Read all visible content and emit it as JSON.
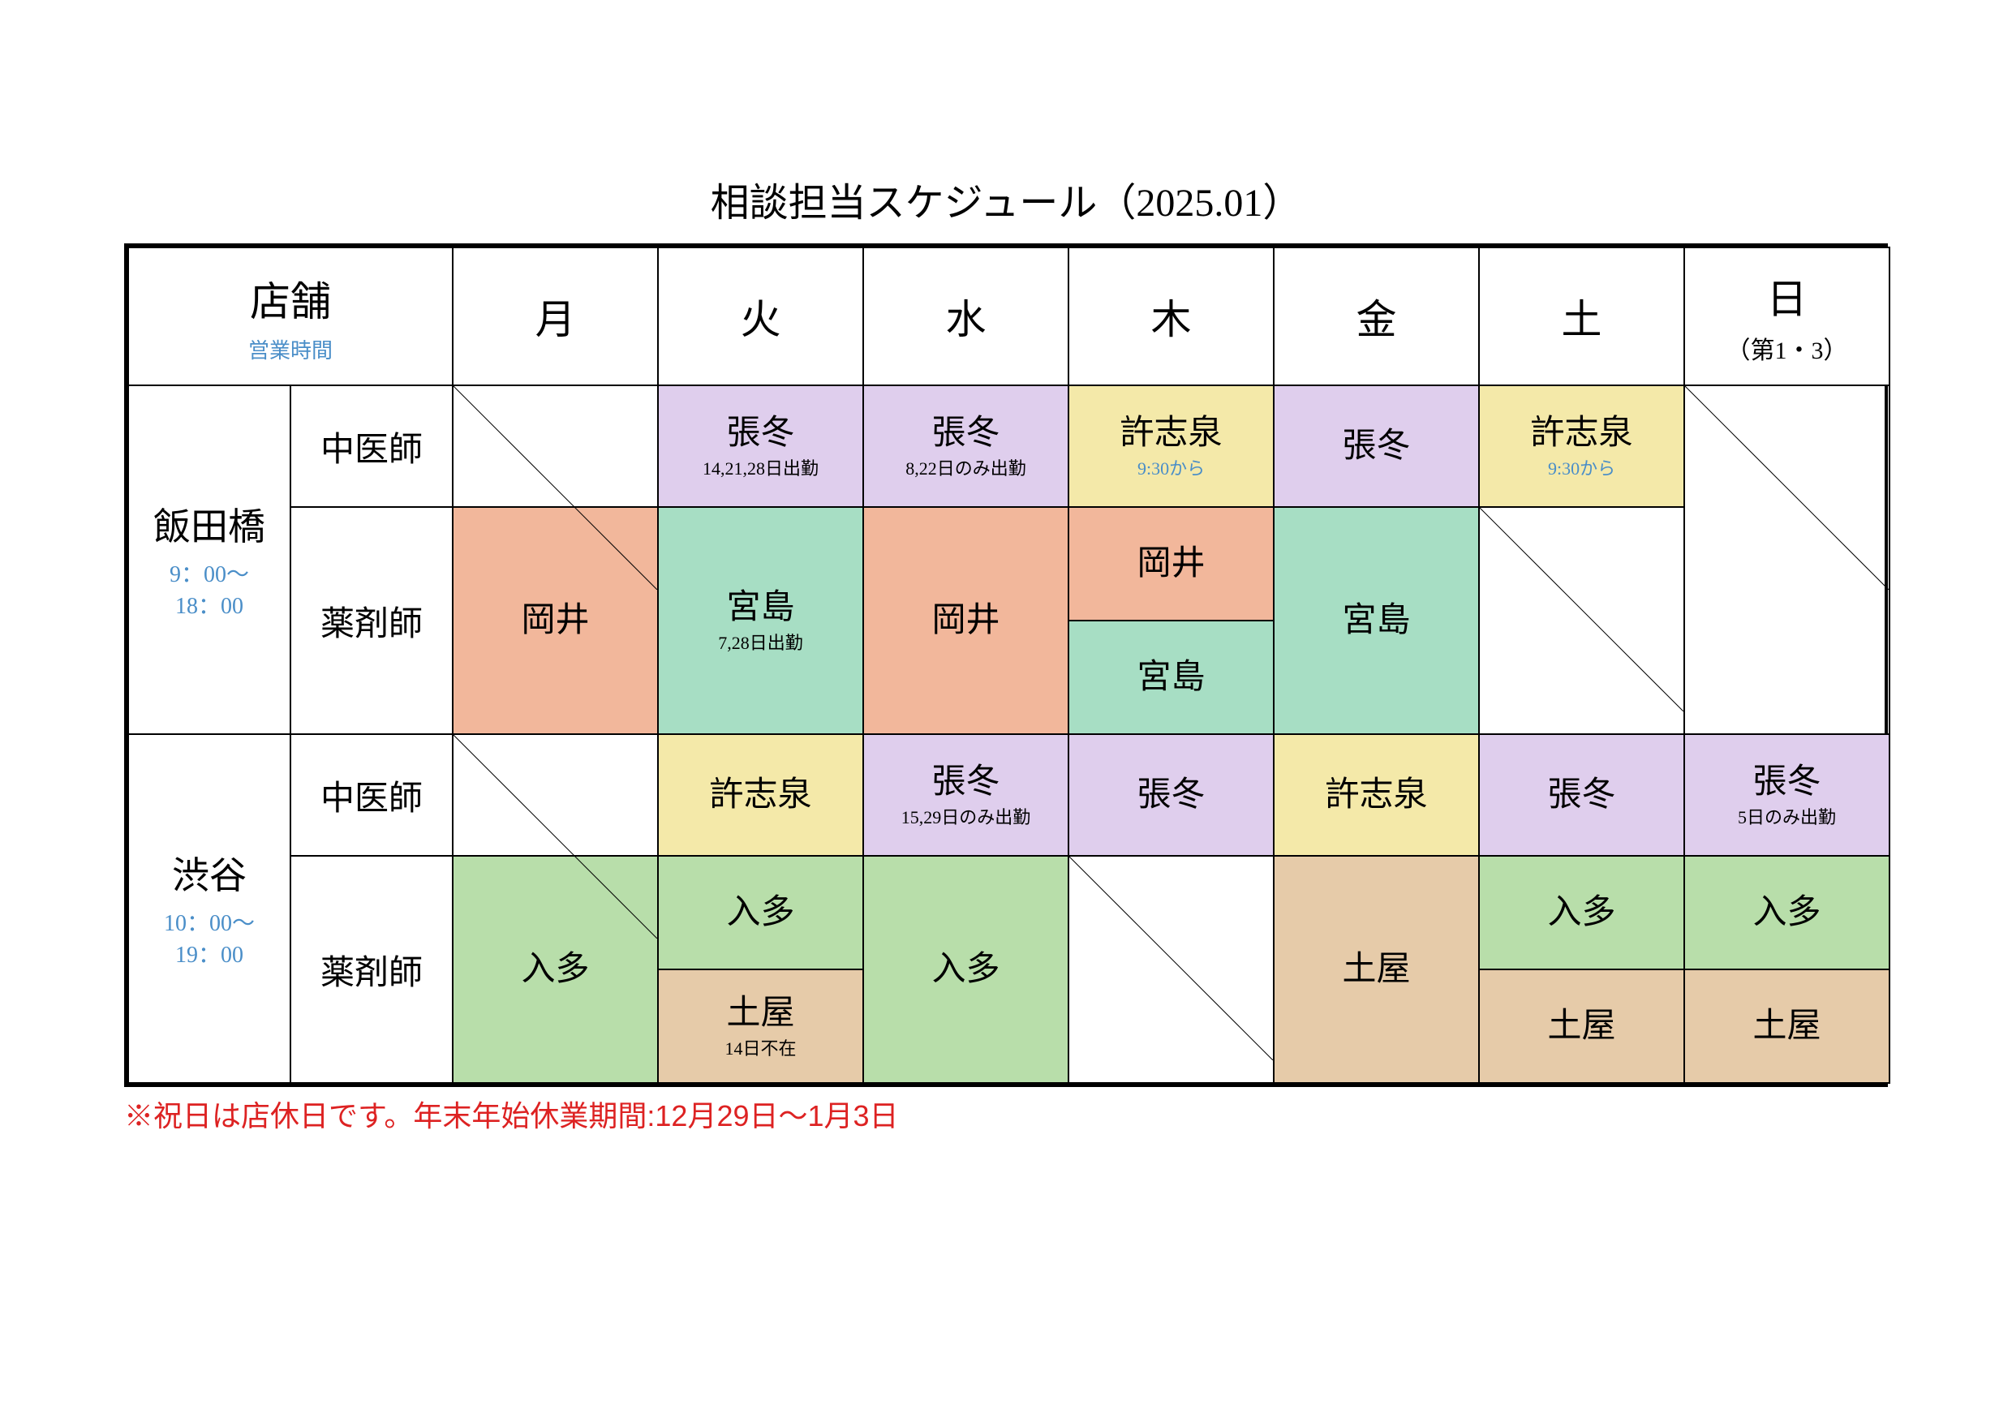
{
  "title": "相談担当スケジュール（2025.01）",
  "header": {
    "store_label": "店舗",
    "store_sub": "営業時間",
    "days": [
      "月",
      "火",
      "水",
      "木",
      "金",
      "土",
      "日"
    ],
    "sun_sub": "（第1・3）"
  },
  "colors": {
    "purple": "#dfceed",
    "yellow": "#f4e9a9",
    "salmon": "#f2b79b",
    "mint": "#a7dec4",
    "green": "#b8deaa",
    "tan": "#e6cba9"
  },
  "roles": {
    "doctor": "中医師",
    "pharm": "薬剤師"
  },
  "stores": [
    {
      "name": "飯田橋",
      "hours": "9：00～\n18：00"
    },
    {
      "name": "渋谷",
      "hours": "10：00～\n19：00"
    }
  ],
  "iidabashi_doc": {
    "mon": {
      "diag": true
    },
    "tue": {
      "name": "張冬",
      "sub": "14,21,28日出勤",
      "bg": "purple"
    },
    "wed": {
      "name": "張冬",
      "sub": "8,22日のみ出勤",
      "bg": "purple"
    },
    "thu": {
      "name": "許志泉",
      "sub": "9:30から",
      "sub_teal": true,
      "bg": "yellow"
    },
    "fri": {
      "name": "張冬",
      "bg": "purple"
    },
    "sat": {
      "name": "許志泉",
      "sub": "9:30から",
      "sub_teal": true,
      "bg": "yellow"
    },
    "sun": {
      "diag": true
    }
  },
  "iidabashi_pharm": {
    "mon": {
      "type": "single",
      "name": "岡井",
      "bg": "salmon"
    },
    "tue": {
      "type": "single",
      "name": "宮島",
      "sub": "7,28日出勤",
      "bg": "mint"
    },
    "wed": {
      "type": "single",
      "name": "岡井",
      "bg": "salmon"
    },
    "thu": {
      "type": "split",
      "top": {
        "name": "岡井",
        "bg": "salmon"
      },
      "bot": {
        "name": "宮島",
        "bg": "mint"
      }
    },
    "fri": {
      "type": "single",
      "name": "宮島",
      "bg": "mint"
    },
    "sat": {
      "type": "diag"
    },
    "sun": {
      "type": "diag"
    }
  },
  "shibuya_doc": {
    "mon": {
      "diag": true
    },
    "tue": {
      "name": "許志泉",
      "bg": "yellow"
    },
    "wed": {
      "name": "張冬",
      "sub": "15,29日のみ出勤",
      "bg": "purple"
    },
    "thu": {
      "name": "張冬",
      "bg": "purple"
    },
    "fri": {
      "name": "許志泉",
      "bg": "yellow"
    },
    "sat": {
      "name": "張冬",
      "bg": "purple"
    },
    "sun": {
      "name": "張冬",
      "sub": "5日のみ出勤",
      "bg": "purple"
    }
  },
  "shibuya_pharm": {
    "mon": {
      "type": "single",
      "name": "入多",
      "bg": "green"
    },
    "tue": {
      "type": "split",
      "top": {
        "name": "入多",
        "bg": "green"
      },
      "bot": {
        "name": "土屋",
        "sub": "14日不在",
        "bg": "tan"
      }
    },
    "wed": {
      "type": "single",
      "name": "入多",
      "bg": "green"
    },
    "thu": {
      "type": "diag"
    },
    "fri": {
      "type": "single",
      "name": "土屋",
      "bg": "tan"
    },
    "sat": {
      "type": "split",
      "top": {
        "name": "入多",
        "bg": "green"
      },
      "bot": {
        "name": "土屋",
        "bg": "tan"
      }
    },
    "sun": {
      "type": "split",
      "top": {
        "name": "入多",
        "bg": "green"
      },
      "bot": {
        "name": "土屋",
        "bg": "tan"
      }
    }
  },
  "footnote": "※祝日は店休日です。年末年始休業期間:12月29日～1月3日"
}
